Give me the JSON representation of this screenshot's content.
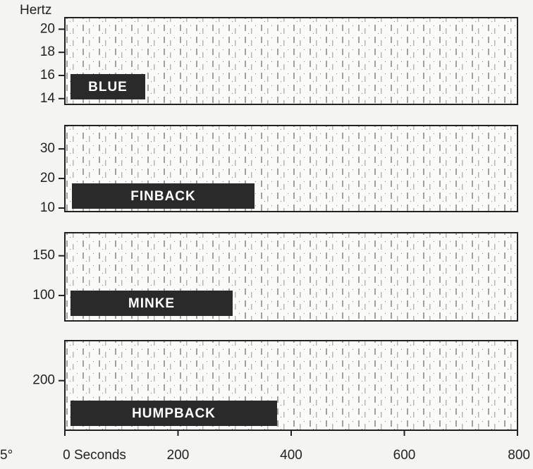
{
  "chart_data": [
    {
      "type": "spectrogram",
      "label": "BLUE",
      "y_label": "Hertz",
      "ylim": [
        13.5,
        21
      ],
      "yticks": [
        14,
        16,
        18,
        20
      ]
    },
    {
      "type": "spectrogram",
      "label": "FINBACK",
      "ylim": [
        8.8,
        37.9
      ],
      "yticks": [
        10,
        20,
        30
      ]
    },
    {
      "type": "spectrogram",
      "label": "MINKE",
      "ylim": [
        68,
        179
      ],
      "yticks": [
        100,
        150
      ]
    },
    {
      "type": "spectrogram",
      "label": "HUMPBACK",
      "ylim": [
        112,
        271
      ],
      "yticks": [
        200
      ],
      "xlim": [
        0,
        800
      ],
      "xticks": [
        {
          "value": 0,
          "label": "0 Seconds"
        },
        200,
        400,
        600,
        800
      ]
    }
  ],
  "margin_text": "5°"
}
